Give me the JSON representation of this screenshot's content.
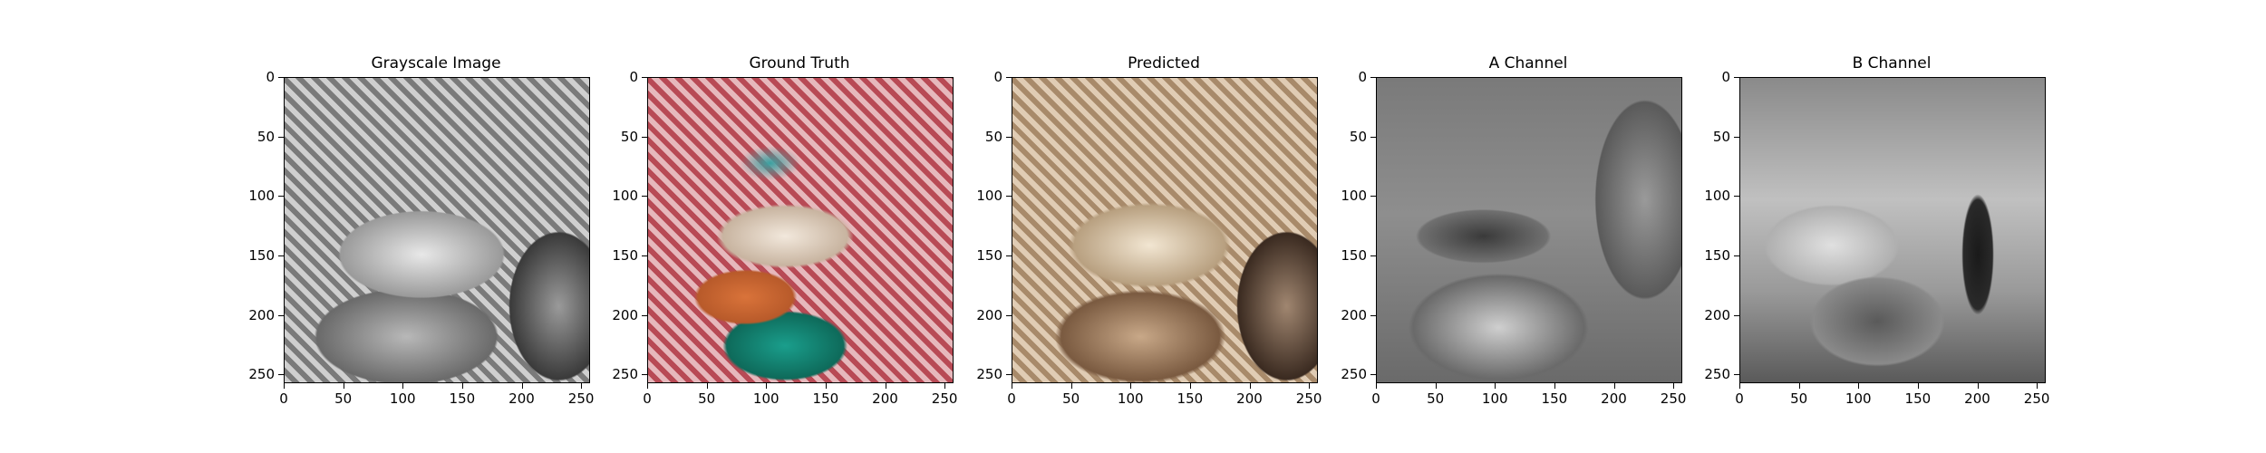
{
  "figure": {
    "panels": [
      {
        "id": "grayscale",
        "title": "Grayscale Image",
        "style": "gray"
      },
      {
        "id": "ground_truth",
        "title": "Ground Truth",
        "style": "color"
      },
      {
        "id": "predicted",
        "title": "Predicted",
        "style": "sepia"
      },
      {
        "id": "a_channel",
        "title": "A Channel",
        "style": "a"
      },
      {
        "id": "b_channel",
        "title": "B Channel",
        "style": "b"
      }
    ],
    "y_ticks": [
      "0",
      "50",
      "100",
      "150",
      "200",
      "250"
    ],
    "x_ticks": [
      "0",
      "50",
      "100",
      "150",
      "200",
      "250"
    ],
    "axis_range": [
      0,
      256
    ],
    "colors": {
      "candy_orange": "#d9733a",
      "candy_teal": "#1a9e8c",
      "checker_red": "#b84a55",
      "sepia": "#a88a6a"
    }
  }
}
